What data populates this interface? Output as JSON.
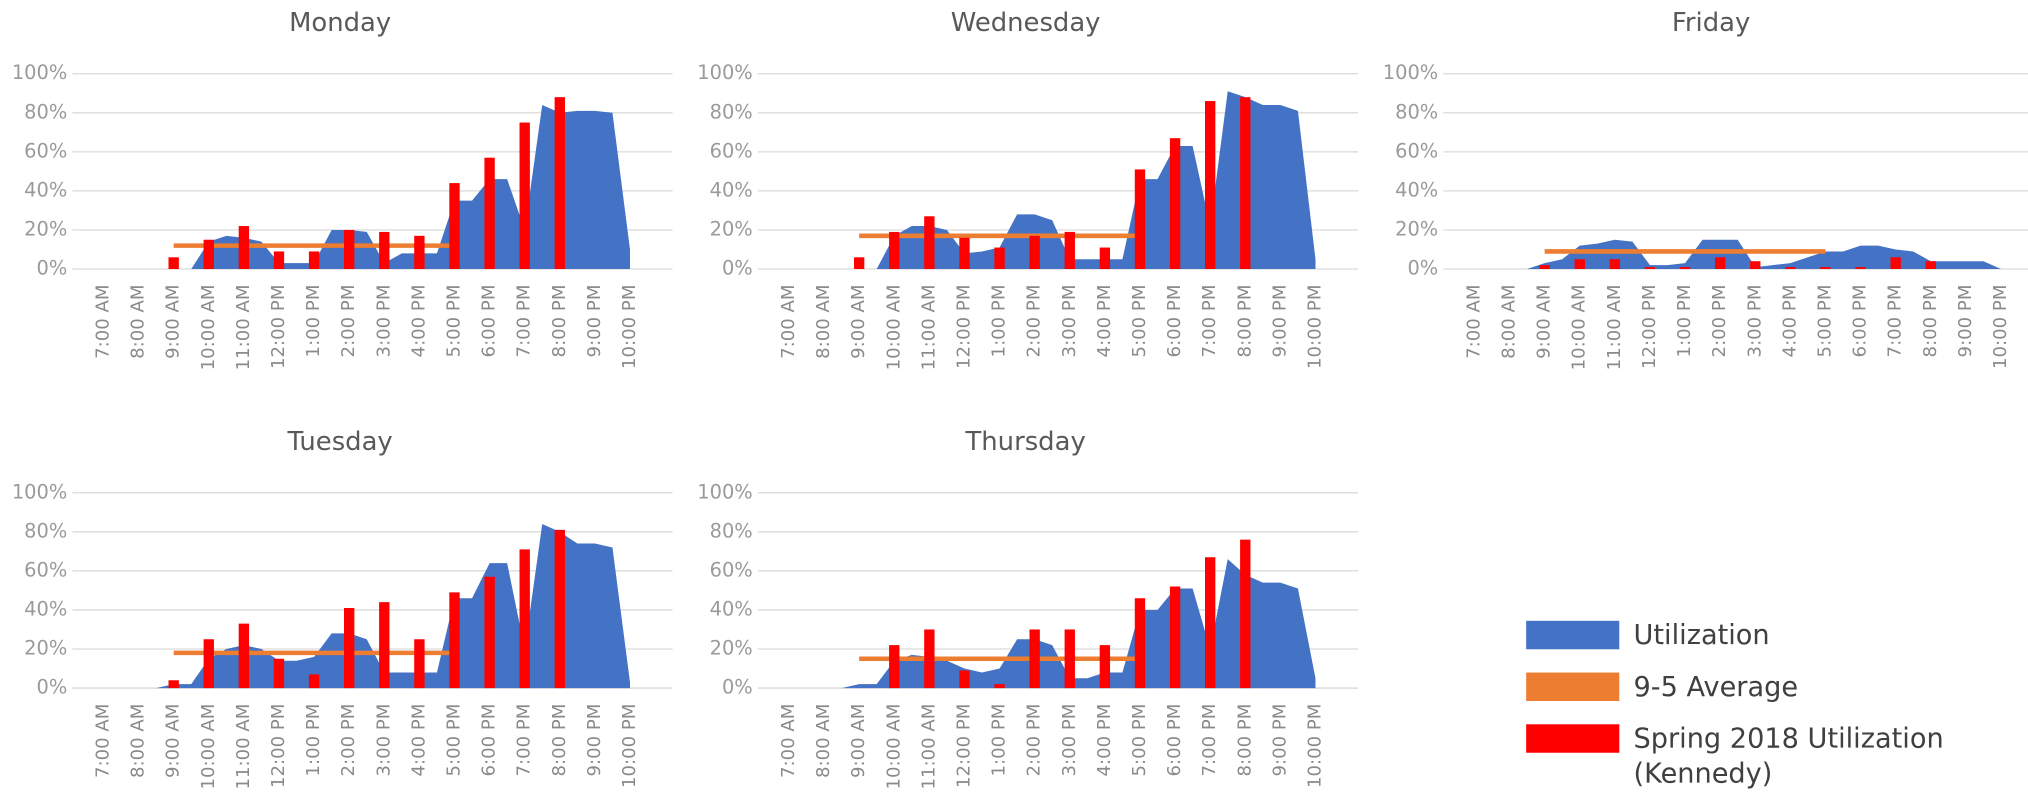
{
  "chart_data": [
    {
      "type": "combo",
      "title": "Monday",
      "categories": [
        "7:00 AM",
        null,
        "8:00 AM",
        null,
        "9:00 AM",
        null,
        "10:00 AM",
        null,
        "11:00 AM",
        null,
        "12:00 PM",
        null,
        "1:00 PM",
        null,
        "2:00 PM",
        null,
        "3:00 PM",
        null,
        "4:00 PM",
        null,
        "5:00 PM",
        null,
        "6:00 PM",
        null,
        "7:00 PM",
        null,
        "8:00 PM",
        null,
        "9:00 PM",
        null,
        "10:00 PM"
      ],
      "ylim": [
        0,
        100
      ],
      "yticks": [
        {
          "value": 0,
          "label": "0%"
        },
        {
          "value": 20,
          "label": "20%"
        },
        {
          "value": 40,
          "label": "40%"
        },
        {
          "value": 60,
          "label": "60%"
        },
        {
          "value": 80,
          "label": "80%"
        },
        {
          "value": 100,
          "label": "100%"
        }
      ],
      "grid": true,
      "series": [
        {
          "name": "Utilization",
          "type": "area",
          "color": "#4472c4",
          "values": [
            0,
            0,
            0,
            0,
            0,
            0,
            14,
            17,
            16,
            14,
            3,
            3,
            3,
            20,
            20,
            19,
            3,
            8,
            8,
            8,
            35,
            35,
            46,
            46,
            20,
            84,
            80,
            81,
            81,
            80,
            10
          ]
        },
        {
          "name": "9-5 Average",
          "type": "line",
          "color": "#ed7d31",
          "values": [
            null,
            null,
            null,
            null,
            12,
            12,
            12,
            12,
            12,
            12,
            12,
            12,
            12,
            12,
            12,
            12,
            12,
            12,
            12,
            12,
            12,
            null,
            null,
            null,
            null,
            null,
            null,
            null,
            null,
            null,
            null
          ]
        },
        {
          "name": "Spring 2018 Utilization (Kennedy)",
          "type": "bar",
          "color": "#ff0000",
          "values": [
            null,
            null,
            null,
            null,
            6,
            null,
            15,
            null,
            22,
            null,
            9,
            null,
            9,
            null,
            20,
            null,
            19,
            null,
            17,
            null,
            44,
            null,
            57,
            null,
            75,
            null,
            88,
            null,
            null,
            null,
            null
          ]
        }
      ]
    },
    {
      "type": "combo",
      "title": "Wednesday",
      "categories": [
        "7:00 AM",
        null,
        "8:00 AM",
        null,
        "9:00 AM",
        null,
        "10:00 AM",
        null,
        "11:00 AM",
        null,
        "12:00 PM",
        null,
        "1:00 PM",
        null,
        "2:00 PM",
        null,
        "3:00 PM",
        null,
        "4:00 PM",
        null,
        "5:00 PM",
        null,
        "6:00 PM",
        null,
        "7:00 PM",
        null,
        "8:00 PM",
        null,
        "9:00 PM",
        null,
        "10:00 PM"
      ],
      "ylim": [
        0,
        100
      ],
      "yticks": [
        {
          "value": 0,
          "label": "0%"
        },
        {
          "value": 20,
          "label": "20%"
        },
        {
          "value": 40,
          "label": "40%"
        },
        {
          "value": 60,
          "label": "60%"
        },
        {
          "value": 80,
          "label": "80%"
        },
        {
          "value": 100,
          "label": "100%"
        }
      ],
      "grid": true,
      "series": [
        {
          "name": "Utilization",
          "type": "area",
          "color": "#4472c4",
          "values": [
            0,
            0,
            0,
            0,
            0,
            0,
            17,
            22,
            22,
            20,
            8,
            9,
            11,
            28,
            28,
            25,
            5,
            5,
            5,
            5,
            46,
            46,
            63,
            63,
            22,
            91,
            88,
            84,
            84,
            81,
            5
          ]
        },
        {
          "name": "9-5 Average",
          "type": "line",
          "color": "#ed7d31",
          "values": [
            null,
            null,
            null,
            null,
            17,
            17,
            17,
            17,
            17,
            17,
            17,
            17,
            17,
            17,
            17,
            17,
            17,
            17,
            17,
            17,
            17,
            null,
            null,
            null,
            null,
            null,
            null,
            null,
            null,
            null,
            null
          ]
        },
        {
          "name": "Spring 2018 Utilization (Kennedy)",
          "type": "bar",
          "color": "#ff0000",
          "values": [
            null,
            null,
            null,
            null,
            6,
            null,
            19,
            null,
            27,
            null,
            16,
            null,
            11,
            null,
            17,
            null,
            19,
            null,
            11,
            null,
            51,
            null,
            67,
            null,
            86,
            null,
            88,
            null,
            null,
            null,
            null
          ]
        }
      ]
    },
    {
      "type": "combo",
      "title": "Friday",
      "categories": [
        "7:00 AM",
        null,
        "8:00 AM",
        null,
        "9:00 AM",
        null,
        "10:00 AM",
        null,
        "11:00 AM",
        null,
        "12:00 PM",
        null,
        "1:00 PM",
        null,
        "2:00 PM",
        null,
        "3:00 PM",
        null,
        "4:00 PM",
        null,
        "5:00 PM",
        null,
        "6:00 PM",
        null,
        "7:00 PM",
        null,
        "8:00 PM",
        null,
        "9:00 PM",
        null,
        "10:00 PM"
      ],
      "ylim": [
        0,
        100
      ],
      "yticks": [
        {
          "value": 0,
          "label": "0%"
        },
        {
          "value": 20,
          "label": "20%"
        },
        {
          "value": 40,
          "label": "40%"
        },
        {
          "value": 60,
          "label": "60%"
        },
        {
          "value": 80,
          "label": "80%"
        },
        {
          "value": 100,
          "label": "100%"
        }
      ],
      "grid": true,
      "series": [
        {
          "name": "Utilization",
          "type": "area",
          "color": "#4472c4",
          "values": [
            0,
            0,
            0,
            0,
            3,
            5,
            12,
            13,
            15,
            14,
            2,
            2,
            3,
            15,
            15,
            15,
            1,
            2,
            3,
            6,
            9,
            9,
            12,
            12,
            10,
            9,
            4,
            4,
            4,
            4,
            0
          ]
        },
        {
          "name": "9-5 Average",
          "type": "line",
          "color": "#ed7d31",
          "values": [
            null,
            null,
            null,
            null,
            9,
            9,
            9,
            9,
            9,
            9,
            9,
            9,
            9,
            9,
            9,
            9,
            9,
            9,
            9,
            9,
            9,
            null,
            null,
            null,
            null,
            null,
            null,
            null,
            null,
            null,
            null
          ]
        },
        {
          "name": "Spring 2018 Utilization (Kennedy)",
          "type": "bar",
          "color": "#ff0000",
          "values": [
            null,
            null,
            null,
            null,
            2,
            null,
            5,
            null,
            5,
            null,
            1,
            null,
            1,
            null,
            6,
            null,
            4,
            null,
            1,
            null,
            1,
            null,
            1,
            null,
            6,
            null,
            4,
            null,
            null,
            null,
            null
          ]
        }
      ]
    },
    {
      "type": "combo",
      "title": "Tuesday",
      "categories": [
        "7:00 AM",
        null,
        "8:00 AM",
        null,
        "9:00 AM",
        null,
        "10:00 AM",
        null,
        "11:00 AM",
        null,
        "12:00 PM",
        null,
        "1:00 PM",
        null,
        "2:00 PM",
        null,
        "3:00 PM",
        null,
        "4:00 PM",
        null,
        "5:00 PM",
        null,
        "6:00 PM",
        null,
        "7:00 PM",
        null,
        "8:00 PM",
        null,
        "9:00 PM",
        null,
        "10:00 PM"
      ],
      "ylim": [
        0,
        100
      ],
      "yticks": [
        {
          "value": 0,
          "label": "0%"
        },
        {
          "value": 20,
          "label": "20%"
        },
        {
          "value": 40,
          "label": "40%"
        },
        {
          "value": 60,
          "label": "60%"
        },
        {
          "value": 80,
          "label": "80%"
        },
        {
          "value": 100,
          "label": "100%"
        }
      ],
      "grid": true,
      "series": [
        {
          "name": "Utilization",
          "type": "area",
          "color": "#4472c4",
          "values": [
            0,
            0,
            0,
            0,
            2,
            2,
            15,
            20,
            22,
            20,
            14,
            14,
            16,
            28,
            28,
            25,
            8,
            8,
            8,
            8,
            46,
            46,
            64,
            64,
            20,
            84,
            80,
            74,
            74,
            72,
            3
          ]
        },
        {
          "name": "9-5 Average",
          "type": "line",
          "color": "#ed7d31",
          "values": [
            null,
            null,
            null,
            null,
            18,
            18,
            18,
            18,
            18,
            18,
            18,
            18,
            18,
            18,
            18,
            18,
            18,
            18,
            18,
            18,
            18,
            null,
            null,
            null,
            null,
            null,
            null,
            null,
            null,
            null,
            null
          ]
        },
        {
          "name": "Spring 2018 Utilization (Kennedy)",
          "type": "bar",
          "color": "#ff0000",
          "values": [
            null,
            null,
            null,
            null,
            4,
            null,
            25,
            null,
            33,
            null,
            15,
            null,
            7,
            null,
            41,
            null,
            44,
            null,
            25,
            null,
            49,
            null,
            57,
            null,
            71,
            null,
            81,
            null,
            null,
            null,
            null
          ]
        }
      ]
    },
    {
      "type": "combo",
      "title": "Thursday",
      "categories": [
        "7:00 AM",
        null,
        "8:00 AM",
        null,
        "9:00 AM",
        null,
        "10:00 AM",
        null,
        "11:00 AM",
        null,
        "12:00 PM",
        null,
        "1:00 PM",
        null,
        "2:00 PM",
        null,
        "3:00 PM",
        null,
        "4:00 PM",
        null,
        "5:00 PM",
        null,
        "6:00 PM",
        null,
        "7:00 PM",
        null,
        "8:00 PM",
        null,
        "9:00 PM",
        null,
        "10:00 PM"
      ],
      "ylim": [
        0,
        100
      ],
      "yticks": [
        {
          "value": 0,
          "label": "0%"
        },
        {
          "value": 20,
          "label": "20%"
        },
        {
          "value": 40,
          "label": "40%"
        },
        {
          "value": 60,
          "label": "60%"
        },
        {
          "value": 80,
          "label": "80%"
        },
        {
          "value": 100,
          "label": "100%"
        }
      ],
      "grid": true,
      "series": [
        {
          "name": "Utilization",
          "type": "area",
          "color": "#4472c4",
          "values": [
            0,
            0,
            0,
            0,
            2,
            2,
            14,
            17,
            16,
            14,
            10,
            8,
            10,
            25,
            25,
            22,
            5,
            5,
            8,
            8,
            40,
            40,
            51,
            51,
            20,
            66,
            58,
            54,
            54,
            51,
            5
          ]
        },
        {
          "name": "9-5 Average",
          "type": "line",
          "color": "#ed7d31",
          "values": [
            null,
            null,
            null,
            null,
            15,
            15,
            15,
            15,
            15,
            15,
            15,
            15,
            15,
            15,
            15,
            15,
            15,
            15,
            15,
            15,
            15,
            null,
            null,
            null,
            null,
            null,
            null,
            null,
            null,
            null,
            null
          ]
        },
        {
          "name": "Spring 2018 Utilization (Kennedy)",
          "type": "bar",
          "color": "#ff0000",
          "values": [
            null,
            null,
            null,
            null,
            null,
            null,
            22,
            null,
            30,
            null,
            9,
            null,
            2,
            null,
            30,
            null,
            30,
            null,
            22,
            null,
            46,
            null,
            52,
            null,
            67,
            null,
            76,
            null,
            null,
            null,
            null
          ]
        }
      ]
    }
  ]
}
